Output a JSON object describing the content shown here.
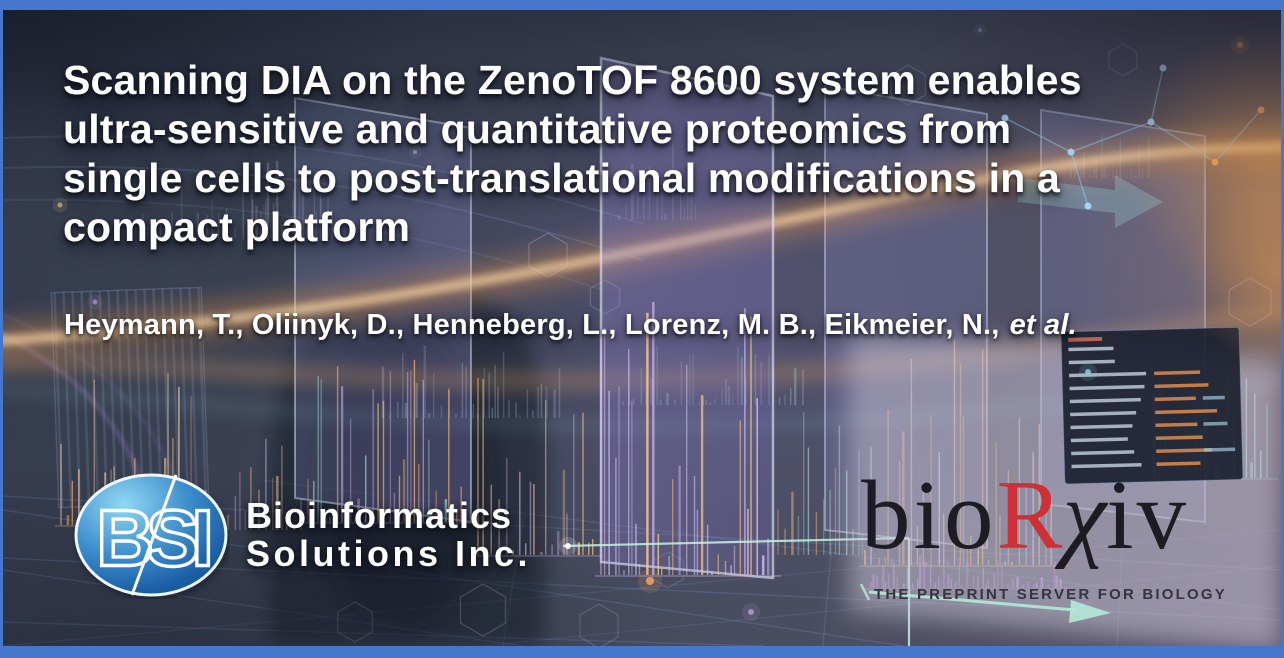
{
  "frame": {
    "border_color": "#4577cd"
  },
  "title": {
    "lines": [
      "Scanning DIA on the ZenoTOF 8600 system enables",
      "ultra-sensitive and quantitative proteomics from",
      "single cells to post-translational modifications in a",
      "compact platform"
    ]
  },
  "authors": {
    "names": "Heymann, T., Oliinyk, D., Henneberg, L., Lorenz, M. B., Eikmeier, N.,",
    "suffix": "et al."
  },
  "bsi": {
    "monogram": "BSI",
    "name_line1": "Bioinformatics",
    "name_line2": "Solutions Inc.",
    "logo_blue_light": "#8fd8f2",
    "logo_blue_dark": "#134a88"
  },
  "biorxiv": {
    "part_bio": "bio",
    "part_r": "R",
    "part_chi": "χ",
    "part_iv": "iv",
    "tagline": "THE PREPRINT SERVER FOR BIOLOGY",
    "color_red": "#cd3137",
    "color_black": "#1d1c22"
  }
}
